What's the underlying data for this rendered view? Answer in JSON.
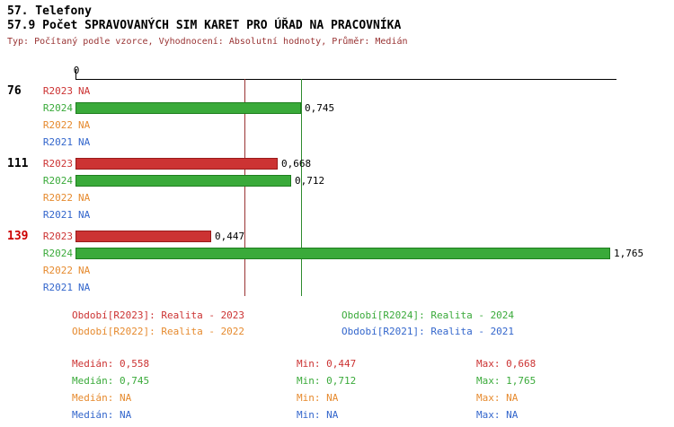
{
  "header": {
    "category": "57. Telefony",
    "title": "57.9 Počet SPRAVOVANÝCH SIM KARET PRO ÚŘAD NA PRACOVNÍKA",
    "subtitle": "Typ: Počítaný podle vzorce, Vyhodnocení: Absolutní hodnoty, Průměr: Medián"
  },
  "colors": {
    "R2023": "#CC3333",
    "R2023_border": "#991A1A",
    "R2024": "#3AAA3A",
    "R2024_border": "#1E7E1E",
    "R2022": "#E68A2E",
    "R2022_border": "#B96F1F",
    "R2021": "#3366CC",
    "R2021_border": "#224C99",
    "median_R2023": "#993333",
    "median_R2024": "#2E8B2E",
    "highlight_group": "#CC0000",
    "subtitle": "#993333",
    "value_text": "#000000",
    "axis": "#000000"
  },
  "chart_data": {
    "type": "bar",
    "orientation": "horizontal",
    "x_axis": {
      "zero_label": "0",
      "min": 0,
      "max_implied": 1.78
    },
    "series_order": [
      "R2023",
      "R2024",
      "R2022",
      "R2021"
    ],
    "groups": [
      {
        "label": "76",
        "highlighted": false,
        "values": [
          {
            "series": "R2023",
            "value": null,
            "display": "NA"
          },
          {
            "series": "R2024",
            "value": 0.745,
            "display": "0,745"
          },
          {
            "series": "R2022",
            "value": null,
            "display": "NA"
          },
          {
            "series": "R2021",
            "value": null,
            "display": "NA"
          }
        ]
      },
      {
        "label": "111",
        "highlighted": false,
        "values": [
          {
            "series": "R2023",
            "value": 0.668,
            "display": "0,668"
          },
          {
            "series": "R2024",
            "value": 0.712,
            "display": "0,712"
          },
          {
            "series": "R2022",
            "value": null,
            "display": "NA"
          },
          {
            "series": "R2021",
            "value": null,
            "display": "NA"
          }
        ]
      },
      {
        "label": "139",
        "highlighted": true,
        "values": [
          {
            "series": "R2023",
            "value": 0.447,
            "display": "0,447"
          },
          {
            "series": "R2024",
            "value": 1.765,
            "display": "1,765"
          },
          {
            "series": "R2022",
            "value": null,
            "display": "NA"
          },
          {
            "series": "R2021",
            "value": null,
            "display": "NA"
          }
        ]
      }
    ],
    "median_lines": [
      {
        "series": "R2023",
        "value": 0.558
      },
      {
        "series": "R2024",
        "value": 0.745
      }
    ]
  },
  "legend": {
    "items": [
      {
        "series": "R2023",
        "text": "Období[R2023]: Realita - 2023"
      },
      {
        "series": "R2024",
        "text": "Období[R2024]: Realita - 2024"
      },
      {
        "series": "R2022",
        "text": "Období[R2022]: Realita - 2022"
      },
      {
        "series": "R2021",
        "text": "Období[R2021]: Realita - 2021"
      }
    ]
  },
  "stats": {
    "rows": [
      {
        "series": "R2023",
        "median": "Medián: 0,558",
        "min": "Min: 0,447",
        "max": "Max: 0,668"
      },
      {
        "series": "R2024",
        "median": "Medián: 0,745",
        "min": "Min: 0,712",
        "max": "Max: 1,765"
      },
      {
        "series": "R2022",
        "median": "Medián: NA",
        "min": "Min: NA",
        "max": "Max: NA"
      },
      {
        "series": "R2021",
        "median": "Medián: NA",
        "min": "Min: NA",
        "max": "Max: NA"
      }
    ]
  }
}
